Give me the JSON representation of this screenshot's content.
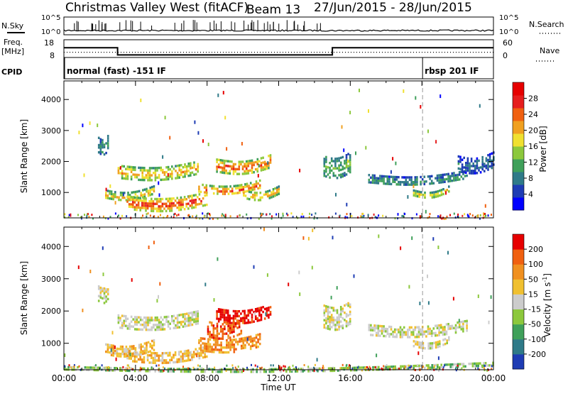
{
  "header": {
    "site": "Christmas Valley West (fitACF)",
    "beam": "Beam 13",
    "date_range": "27/Jun/2015 - 28/Jun/2015"
  },
  "labels": {
    "nsky": "N.Sky",
    "freq_top": "Freq.",
    "freq_bottom": "[MHz]",
    "cpid": "CPID",
    "nsearch": "N.Search",
    "nave": "Nave",
    "xlabel": "Time UT"
  },
  "chart_data": [
    {
      "type": "line",
      "name": "noise-panel",
      "left_ticks": [
        "10^5",
        "10^0"
      ],
      "right_ticks": [
        "10^5",
        "10^0"
      ],
      "series": [
        {
          "name": "N.Sky",
          "style": "solid"
        },
        {
          "name": "N.Search",
          "style": "dotted"
        }
      ]
    },
    {
      "type": "line",
      "name": "frequency-panel",
      "left_ticks": [
        "18",
        "8"
      ],
      "right_ticks": [
        "60",
        "0"
      ],
      "x_hours": [
        0,
        3,
        3,
        15,
        15,
        24
      ],
      "freq_mhz": [
        14.5,
        14.5,
        9.7,
        9.7,
        14.5,
        14.5
      ],
      "nave_dotted_mhz": 11.5
    },
    {
      "type": "table",
      "name": "cpid-panel",
      "segments": [
        {
          "start_hour": 0,
          "label": "normal (fast) -151 IF"
        },
        {
          "start_hour": 20,
          "label": "rbsp 201 IF"
        }
      ]
    },
    {
      "type": "heatmap",
      "name": "power-panel",
      "ylabel": "Slant Range [km]",
      "xlim_hours": [
        0,
        24
      ],
      "ylim_km": [
        180,
        4600
      ],
      "yticks": [
        1000,
        2000,
        3000,
        4000
      ],
      "xticks": [
        "00:00",
        "04:00",
        "08:00",
        "12:00",
        "16:00",
        "20:00",
        "00:00"
      ],
      "colorbar": {
        "label": "Power [dB]",
        "ticks": [
          "28",
          "24",
          "20",
          "16",
          "12",
          "8",
          "4"
        ],
        "colors": [
          "#0000ff",
          "#1e3cb4",
          "#2f7a88",
          "#3fa05a",
          "#8cc83c",
          "#f0e030",
          "#f0a020",
          "#f06010",
          "#e61e1e",
          "#e60000"
        ]
      },
      "echo_bands": [
        {
          "t0": 1.9,
          "t1": 2.5,
          "r0": 2300,
          "r1": 2800,
          "level": 0.3
        },
        {
          "t0": 3.0,
          "t1": 7.5,
          "r0": 1500,
          "r1": 1900,
          "level": 0.7
        },
        {
          "t0": 2.3,
          "t1": 5.0,
          "r0": 800,
          "r1": 1100,
          "level": 0.6
        },
        {
          "t0": 3.5,
          "t1": 8.0,
          "r0": 500,
          "r1": 900,
          "level": 0.9
        },
        {
          "t0": 7.5,
          "t1": 11.0,
          "r0": 1000,
          "r1": 1300,
          "level": 0.8
        },
        {
          "t0": 8.5,
          "t1": 11.5,
          "r0": 1700,
          "r1": 2100,
          "level": 0.85
        },
        {
          "t0": 10.0,
          "t1": 12.0,
          "r0": 850,
          "r1": 1100,
          "level": 0.7
        },
        {
          "t0": 14.5,
          "t1": 16.0,
          "r0": 1500,
          "r1": 2200,
          "level": 0.4
        },
        {
          "t0": 17.0,
          "t1": 22.5,
          "r0": 1300,
          "r1": 1600,
          "level": 0.3
        },
        {
          "t0": 19.5,
          "t1": 21.5,
          "r0": 900,
          "r1": 1100,
          "level": 0.6
        },
        {
          "t0": 22.0,
          "t1": 24.0,
          "r0": 1700,
          "r1": 2200,
          "level": 0.2
        }
      ]
    },
    {
      "type": "heatmap",
      "name": "velocity-panel",
      "ylabel": "Slant Range [km]",
      "xlim_hours": [
        0,
        24
      ],
      "ylim_km": [
        180,
        4600
      ],
      "yticks": [
        1000,
        2000,
        3000,
        4000
      ],
      "xticks": [
        "00:00",
        "04:00",
        "08:00",
        "12:00",
        "16:00",
        "20:00",
        "00:00"
      ],
      "colorbar": {
        "label_main": "Velocity [m s",
        "label_exp": "-1",
        "label_close": "]",
        "ticks": [
          "200",
          "100",
          "50",
          "15",
          "-15",
          "-50",
          "-100",
          "-200"
        ],
        "colors": [
          "#1e3cb4",
          "#2f7a88",
          "#3fa05a",
          "#8cc83c",
          "#cccccc",
          "#f0c030",
          "#f09020",
          "#f06010",
          "#e60000"
        ]
      },
      "echo_bands": [
        {
          "t0": 1.9,
          "t1": 2.5,
          "r0": 2300,
          "r1": 2800,
          "level": 4
        },
        {
          "t0": 3.0,
          "t1": 7.5,
          "r0": 1500,
          "r1": 1900,
          "level": 4
        },
        {
          "t0": 2.3,
          "t1": 5.0,
          "r0": 700,
          "r1": 1000,
          "level": 5
        },
        {
          "t0": 3.5,
          "t1": 8.0,
          "r0": 500,
          "r1": 800,
          "level": 5
        },
        {
          "t0": 7.5,
          "t1": 11.0,
          "r0": 800,
          "r1": 1200,
          "level": 6
        },
        {
          "t0": 8.5,
          "t1": 11.5,
          "r0": 1700,
          "r1": 2100,
          "level": 8
        },
        {
          "t0": 8.0,
          "t1": 10.0,
          "r0": 1200,
          "r1": 1700,
          "level": 7
        },
        {
          "t0": 14.5,
          "t1": 16.0,
          "r0": 1500,
          "r1": 2200,
          "level": 4
        },
        {
          "t0": 17.0,
          "t1": 22.5,
          "r0": 1300,
          "r1": 1600,
          "level": 4
        },
        {
          "t0": 19.5,
          "t1": 21.5,
          "r0": 900,
          "r1": 1100,
          "level": 4
        },
        {
          "t0": 0.0,
          "t1": 24.0,
          "r0": 180,
          "r1": 300,
          "level": 3
        }
      ]
    }
  ]
}
